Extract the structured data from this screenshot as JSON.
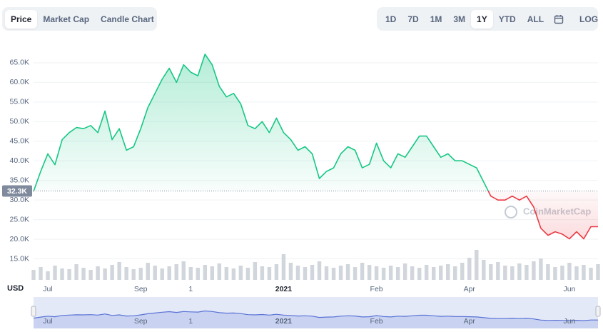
{
  "chart_data": {
    "type": "line",
    "tabs": [
      "Price",
      "Market Cap",
      "Candle Chart"
    ],
    "active_tab": 0,
    "ranges": [
      "1D",
      "7D",
      "1M",
      "3M",
      "1Y",
      "YTD",
      "ALL"
    ],
    "active_range": 4,
    "scale_button": "LOG",
    "watermark": "CoinMarketCap",
    "currency": "USD",
    "up_color": "#16c784",
    "down_color": "#ea3943",
    "grid": true,
    "baseline": {
      "value": 32300,
      "label": "32.3K"
    },
    "ylim": [
      10000,
      71000
    ],
    "yticks": [
      {
        "value": 15000,
        "label": "15.0K"
      },
      {
        "value": 20000,
        "label": "20.0K"
      },
      {
        "value": 25000,
        "label": "25.0K"
      },
      {
        "value": 30000,
        "label": "30.0K"
      },
      {
        "value": 35000,
        "label": "35.0K"
      },
      {
        "value": 40000,
        "label": "40.0K"
      },
      {
        "value": 45000,
        "label": "45.0K"
      },
      {
        "value": 50000,
        "label": "50.0K"
      },
      {
        "value": 55000,
        "label": "55.0K"
      },
      {
        "value": 60000,
        "label": "60.0K"
      },
      {
        "value": 65000,
        "label": "65.0K"
      }
    ],
    "categories": [
      null,
      null,
      "Jul",
      null,
      null,
      null,
      null,
      null,
      null,
      null,
      null,
      null,
      null,
      null,
      null,
      "Sep",
      null,
      null,
      null,
      null,
      null,
      null,
      "1",
      null,
      null,
      null,
      null,
      null,
      null,
      null,
      null,
      null,
      null,
      null,
      null,
      "2021",
      null,
      null,
      null,
      null,
      null,
      null,
      null,
      null,
      null,
      null,
      null,
      null,
      "Feb",
      null,
      null,
      null,
      null,
      null,
      null,
      null,
      null,
      null,
      null,
      null,
      null,
      "Apr",
      null,
      null,
      null,
      null,
      null,
      null,
      null,
      null,
      null,
      null,
      null,
      null,
      null,
      "Jun",
      null,
      null,
      null,
      null
    ],
    "series": [
      {
        "name": "Price",
        "color": "#16c784",
        "values": [
          32200,
          37300,
          41800,
          39000,
          45400,
          47200,
          48500,
          48200,
          49000,
          47200,
          52700,
          45400,
          48200,
          42700,
          43600,
          48200,
          53600,
          57200,
          60800,
          63600,
          60000,
          64500,
          62600,
          61700,
          67200,
          64500,
          59000,
          56300,
          57200,
          54500,
          49000,
          48200,
          50000,
          47200,
          50900,
          47200,
          45400,
          42700,
          43600,
          41800,
          35500,
          37300,
          38200,
          41800,
          43600,
          42700,
          38200,
          39100,
          44500,
          40000,
          38200,
          41800,
          40900,
          43600,
          46300,
          46300,
          43600,
          40900,
          41800,
          40000,
          40000,
          39100,
          38200,
          34600,
          31000,
          30000,
          30000,
          31000,
          30000,
          31000,
          28200,
          22800,
          21000,
          21900,
          21300,
          20100,
          21900,
          20100,
          23200,
          23200
        ]
      }
    ],
    "volume": {
      "color": "#d1d6dc",
      "values": [
        14,
        18,
        12,
        20,
        16,
        15,
        22,
        17,
        14,
        19,
        16,
        21,
        25,
        18,
        15,
        17,
        24,
        20,
        16,
        19,
        22,
        26,
        18,
        17,
        21,
        19,
        23,
        18,
        16,
        20,
        17,
        25,
        19,
        18,
        22,
        36,
        24,
        20,
        18,
        21,
        26,
        19,
        17,
        20,
        22,
        18,
        24,
        21,
        19,
        17,
        20,
        18,
        23,
        19,
        17,
        21,
        18,
        20,
        22,
        19,
        24,
        31,
        42,
        28,
        22,
        25,
        20,
        19,
        23,
        21,
        26,
        30,
        22,
        18,
        20,
        24,
        19,
        21,
        17,
        22
      ]
    }
  }
}
